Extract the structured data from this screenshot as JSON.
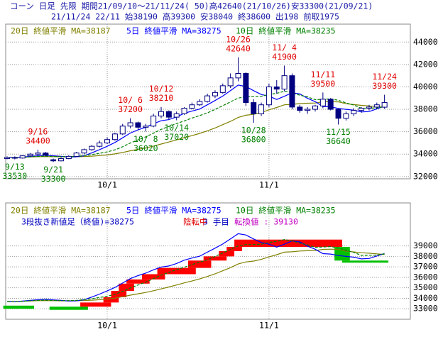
{
  "chart_data": [
    {
      "type": "candlestick",
      "title": "コーン 日足 先限 期間21/09/10～21/11/24( 50)高42640(21/10/26)安33300(21/09/21)",
      "subtitle": "21/11/24 22/11 始38190 高39300 安38040 終38600 出198 前取1975",
      "categories": [
        null,
        null,
        null,
        null,
        null,
        null,
        null,
        null,
        null,
        null,
        null,
        null,
        null,
        "10/1",
        null,
        null,
        null,
        null,
        null,
        null,
        null,
        null,
        null,
        null,
        null,
        null,
        null,
        null,
        null,
        null,
        null,
        null,
        null,
        null,
        "11/1",
        null,
        null,
        null,
        null,
        null,
        null,
        null,
        null,
        null,
        null,
        null,
        null,
        null,
        null,
        null
      ],
      "open": [
        33600,
        33700,
        33650,
        33850,
        34000,
        34100,
        33500,
        33400,
        33600,
        33800,
        34100,
        34400,
        34700,
        35000,
        35300,
        35800,
        36500,
        36800,
        36400,
        36500,
        37400,
        37800,
        37300,
        37600,
        38100,
        38400,
        38700,
        39200,
        39500,
        40100,
        40800,
        41200,
        38600,
        37600,
        38400,
        40000,
        39800,
        41000,
        38200,
        37900,
        38000,
        38300,
        38900,
        38000,
        37200,
        37600,
        37900,
        38100,
        38200,
        38190
      ],
      "high": [
        33800,
        33800,
        33900,
        34100,
        34400,
        34200,
        33600,
        33700,
        33900,
        34200,
        34500,
        34800,
        35200,
        35500,
        35900,
        36700,
        37200,
        36900,
        36700,
        37600,
        38210,
        37900,
        37800,
        38200,
        38600,
        38900,
        39400,
        39700,
        40300,
        41200,
        42640,
        41300,
        38900,
        38600,
        40300,
        40600,
        41900,
        41200,
        38400,
        38200,
        38400,
        39500,
        39000,
        38100,
        37800,
        38100,
        38200,
        38400,
        38600,
        39300
      ],
      "low": [
        33550,
        33530,
        33600,
        33800,
        33900,
        33800,
        33300,
        33350,
        33550,
        33750,
        34000,
        34300,
        34600,
        34900,
        35200,
        35700,
        36300,
        36200,
        36020,
        36400,
        37200,
        37100,
        37020,
        37500,
        38000,
        38300,
        38600,
        39000,
        39400,
        39900,
        40500,
        38300,
        36800,
        37400,
        38200,
        39400,
        39600,
        38000,
        37700,
        37600,
        37800,
        38100,
        37900,
        36640,
        37000,
        37400,
        37700,
        37900,
        38000,
        38040
      ],
      "close": [
        33700,
        33650,
        33850,
        34000,
        34100,
        33900,
        33400,
        33600,
        33800,
        34100,
        34400,
        34700,
        35000,
        35300,
        35800,
        36500,
        36800,
        36400,
        36500,
        37400,
        37800,
        37300,
        37600,
        38100,
        38400,
        38700,
        39200,
        39500,
        40100,
        40800,
        41200,
        38600,
        37600,
        38400,
        40000,
        39800,
        41000,
        38200,
        37900,
        38000,
        38300,
        38900,
        38000,
        37200,
        37600,
        37900,
        38100,
        38200,
        38400,
        38600
      ],
      "up_color": "#ffffff",
      "down_color": "#000080",
      "wick_color": "#000080",
      "series": [
        {
          "name": "20日 終値平滑 MA=38187",
          "color": "#808000",
          "dash": false,
          "values": [
            33700,
            33690,
            33720,
            33750,
            33770,
            33790,
            33770,
            33760,
            33760,
            33770,
            33790,
            33820,
            33870,
            33930,
            34020,
            34150,
            34300,
            34430,
            34560,
            34720,
            34900,
            35080,
            35270,
            35470,
            35650,
            35850,
            36080,
            36330,
            36630,
            36920,
            37270,
            37470,
            37550,
            37710,
            37950,
            38160,
            38400,
            38440,
            38510,
            38540,
            38560,
            38670,
            38690,
            38660,
            38500,
            38420,
            38350,
            38300,
            38240,
            38187
          ]
        },
        {
          "name": "5日 終値平滑 MA=38275",
          "color": "#0000ff",
          "dash": false,
          "values": [
            33700,
            33680,
            33730,
            33800,
            33860,
            33900,
            33850,
            33800,
            33740,
            33760,
            33860,
            34120,
            34400,
            34700,
            35040,
            35460,
            35880,
            36160,
            36400,
            36720,
            36980,
            37080,
            37320,
            37640,
            37840,
            38020,
            38400,
            38780,
            39180,
            39660,
            40160,
            40040,
            39660,
            39320,
            39160,
            38880,
            39160,
            39480,
            39380,
            38980,
            38680,
            38260,
            38220,
            38080,
            38000,
            37920,
            37760,
            37800,
            38040,
            38275
          ]
        },
        {
          "name": "10日 終値平滑 MA=38235",
          "color": "#008000",
          "dash": true,
          "values": [
            33700,
            33680,
            33720,
            33760,
            33800,
            33820,
            33790,
            33780,
            33780,
            33800,
            33870,
            33960,
            34080,
            34200,
            34380,
            34660,
            34990,
            35270,
            35540,
            35870,
            36210,
            36470,
            36730,
            36960,
            37220,
            37440,
            37680,
            37990,
            38320,
            38660,
            39000,
            39130,
            39130,
            39160,
            39320,
            39430,
            39610,
            39480,
            39260,
            39110,
            38860,
            38890,
            38930,
            38810,
            38570,
            38380,
            38090,
            38110,
            38120,
            38235
          ]
        }
      ],
      "annotations": [
        {
          "date": "9/13",
          "value": 33530,
          "kind": "low",
          "color": "#008000"
        },
        {
          "date": "9/16",
          "value": 34400,
          "kind": "high",
          "color": "#e00000"
        },
        {
          "date": "9/21",
          "value": 33300,
          "kind": "low",
          "color": "#008000"
        },
        {
          "date": "10/ 6",
          "value": 37200,
          "kind": "high",
          "color": "#e00000"
        },
        {
          "date": "10/ 8",
          "value": 36020,
          "kind": "low",
          "color": "#008000"
        },
        {
          "date": "10/12",
          "value": 38210,
          "kind": "high",
          "color": "#e00000"
        },
        {
          "date": "10/14",
          "value": 37020,
          "kind": "low",
          "color": "#008000"
        },
        {
          "date": "10/26",
          "value": 42640,
          "kind": "high",
          "color": "#e00000"
        },
        {
          "date": "10/28",
          "value": 36800,
          "kind": "low",
          "color": "#008000"
        },
        {
          "date": "11/ 4",
          "value": 41900,
          "kind": "high",
          "color": "#e00000"
        },
        {
          "date": "11/11",
          "value": 39500,
          "kind": "high",
          "color": "#e00000"
        },
        {
          "date": "11/15",
          "value": 36640,
          "kind": "low",
          "color": "#008000"
        },
        {
          "date": "11/24",
          "value": 39300,
          "kind": "high",
          "color": "#e00000"
        }
      ],
      "ylim": [
        31800,
        45600
      ],
      "yticks": [
        32000,
        34000,
        36000,
        38000,
        40000,
        42000,
        44000
      ],
      "grid": true
    },
    {
      "type": "three_line_break",
      "label": "3段抜き新値足（終値)=38275",
      "status": "陰転中",
      "count": "3 手目",
      "reversal": "転換値 : 39130",
      "bricks": [
        {
          "from": 33300,
          "to": 33000,
          "x": [
            0,
            3
          ],
          "color": "#00c000"
        },
        {
          "from": 33200,
          "to": 32900,
          "x": [
            6,
            10
          ],
          "color": "#00c000"
        },
        {
          "from": 33200,
          "to": 33600,
          "x": [
            10,
            13
          ],
          "color": "#ff0000"
        },
        {
          "from": 33600,
          "to": 34100,
          "x": [
            13,
            14
          ],
          "color": "#ff0000"
        },
        {
          "from": 34100,
          "to": 34700,
          "x": [
            14,
            15
          ],
          "color": "#ff0000"
        },
        {
          "from": 34700,
          "to": 35400,
          "x": [
            15,
            16
          ],
          "color": "#ff0000"
        },
        {
          "from": 35400,
          "to": 35800,
          "x": [
            16,
            18
          ],
          "color": "#ff0000"
        },
        {
          "from": 35800,
          "to": 36300,
          "x": [
            18,
            20
          ],
          "color": "#ff0000"
        },
        {
          "from": 36300,
          "to": 36900,
          "x": [
            20,
            24
          ],
          "color": "#ff0000"
        },
        {
          "from": 36900,
          "to": 37600,
          "x": [
            24,
            26
          ],
          "color": "#ff0000"
        },
        {
          "from": 37600,
          "to": 38000,
          "x": [
            26,
            28
          ],
          "color": "#ff0000"
        },
        {
          "from": 38000,
          "to": 38500,
          "x": [
            28,
            29
          ],
          "color": "#ff0000"
        },
        {
          "from": 38500,
          "to": 38900,
          "x": [
            29,
            30
          ],
          "color": "#ff0000"
        },
        {
          "from": 38900,
          "to": 39600,
          "x": [
            30,
            43
          ],
          "color": "#ff0000"
        },
        {
          "from": 38900,
          "to": 37600,
          "x": [
            43,
            44
          ],
          "color": "#00c000"
        },
        {
          "from": 37600,
          "to": 37400,
          "x": [
            44,
            49
          ],
          "color": "#00c000"
        }
      ],
      "ylim": [
        32000,
        43100
      ],
      "yticks": [
        33000,
        34000,
        35000,
        36000,
        37000,
        38000,
        39000
      ],
      "grid": true
    }
  ]
}
